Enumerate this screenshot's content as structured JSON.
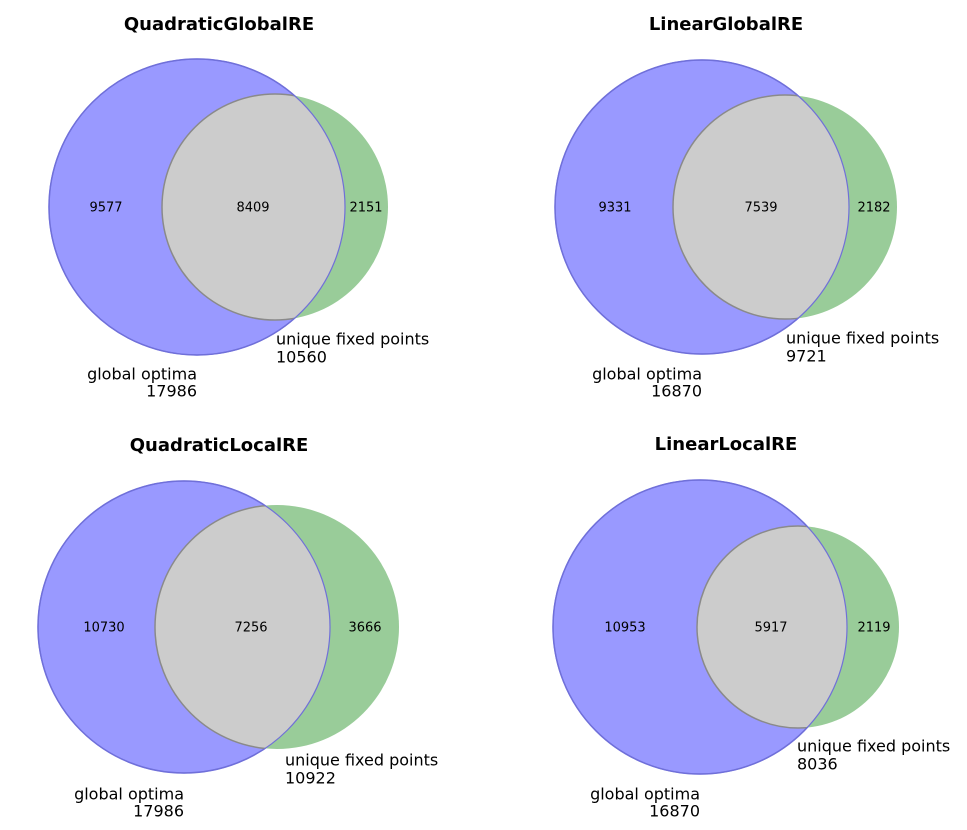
{
  "chart_data": [
    {
      "type": "venn2",
      "title": "QuadraticGlobalRE",
      "sets": [
        {
          "name": "global optima",
          "total": "17986",
          "only": "9577",
          "color": "#9999ff"
        },
        {
          "name": "unique fixed points",
          "total": "10560",
          "only": "2151",
          "color": "#99cc99"
        }
      ],
      "intersection": "8409",
      "intersection_color": "#cccccc"
    },
    {
      "type": "venn2",
      "title": "LinearGlobalRE",
      "sets": [
        {
          "name": "global optima",
          "total": "16870",
          "only": "9331",
          "color": "#9999ff"
        },
        {
          "name": "unique fixed points",
          "total": "9721",
          "only": "2182",
          "color": "#99cc99"
        }
      ],
      "intersection": "7539",
      "intersection_color": "#cccccc"
    },
    {
      "type": "venn2",
      "title": "QuadraticLocalRE",
      "sets": [
        {
          "name": "global optima",
          "total": "17986",
          "only": "10730",
          "color": "#9999ff"
        },
        {
          "name": "unique fixed points",
          "total": "10922",
          "only": "3666",
          "color": "#99cc99"
        }
      ],
      "intersection": "7256",
      "intersection_color": "#cccccc"
    },
    {
      "type": "venn2",
      "title": "LinearLocalRE",
      "sets": [
        {
          "name": "global optima",
          "total": "16870",
          "only": "10953",
          "color": "#9999ff"
        },
        {
          "name": "unique fixed points",
          "total": "8036",
          "only": "2119",
          "color": "#99cc99"
        }
      ],
      "intersection": "5917",
      "intersection_color": "#cccccc"
    }
  ]
}
